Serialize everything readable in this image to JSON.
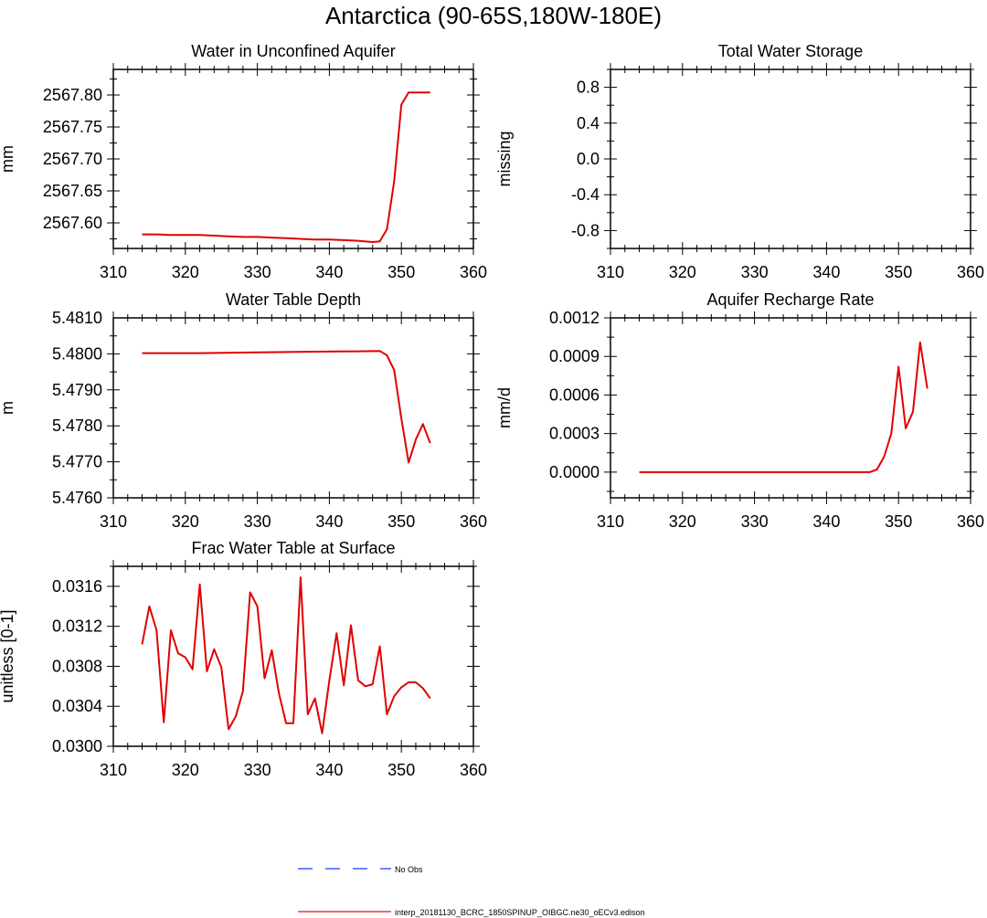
{
  "figure": {
    "title": "Antarctica (90-65S,180W-180E)",
    "legend": {
      "items": [
        {
          "label": "No Obs",
          "color": "#3b5bff",
          "style": "dashed"
        },
        {
          "label": "interp_20181130_BCRC_1850SPINUP_OIBGC.ne30_oECv3.edison",
          "color": "#e83a3a",
          "style": "solid"
        }
      ]
    }
  },
  "chart_data": [
    {
      "type": "line",
      "title": "Water in Unconfined Aquifer",
      "ylabel": "mm",
      "xlim": [
        310,
        360
      ],
      "ylim": [
        2567.56,
        2567.84
      ],
      "xticks": [
        "310",
        "320",
        "330",
        "340",
        "350",
        "360"
      ],
      "yticks": [
        "2567.60",
        "2567.65",
        "2567.70",
        "2567.75",
        "2567.80"
      ],
      "series": [
        {
          "color": "#e00000",
          "x": [
            314,
            316,
            318,
            320,
            322,
            324,
            326,
            328,
            330,
            332,
            334,
            336,
            338,
            340,
            342,
            344,
            346,
            347,
            348,
            349,
            350,
            351,
            352,
            353,
            354
          ],
          "y": [
            2567.582,
            2567.582,
            2567.581,
            2567.581,
            2567.581,
            2567.58,
            2567.579,
            2567.578,
            2567.578,
            2567.577,
            2567.576,
            2567.575,
            2567.574,
            2567.574,
            2567.573,
            2567.572,
            2567.57,
            2567.571,
            2567.59,
            2567.665,
            2567.785,
            2567.804,
            2567.804,
            2567.804,
            2567.804
          ]
        }
      ]
    },
    {
      "type": "line",
      "title": "Total Water Storage",
      "ylabel": "missing",
      "xlim": [
        310,
        360
      ],
      "ylim": [
        -1,
        1
      ],
      "xticks": [
        "310",
        "320",
        "330",
        "340",
        "350",
        "360"
      ],
      "yticks": [
        "-0.8",
        "-0.4",
        "0.0",
        "0.4",
        "0.8"
      ],
      "series": []
    },
    {
      "type": "line",
      "title": "Water Table Depth",
      "ylabel": "m",
      "xlim": [
        310,
        360
      ],
      "ylim": [
        5.476,
        5.481
      ],
      "xticks": [
        "310",
        "320",
        "330",
        "340",
        "350",
        "360"
      ],
      "yticks": [
        "5.4760",
        "5.4770",
        "5.4780",
        "5.4790",
        "5.4800",
        "5.4810"
      ],
      "series": [
        {
          "color": "#e00000",
          "x": [
            314,
            322,
            330,
            338,
            344,
            347,
            348,
            349,
            350,
            351,
            352,
            353,
            354
          ],
          "y": [
            5.48002,
            5.48002,
            5.48004,
            5.48006,
            5.48007,
            5.48008,
            5.47996,
            5.47955,
            5.4782,
            5.47698,
            5.47762,
            5.47805,
            5.47752
          ]
        }
      ]
    },
    {
      "type": "line",
      "title": "Aquifer Recharge Rate",
      "ylabel": "mm/d",
      "xlim": [
        310,
        360
      ],
      "ylim": [
        -0.0002,
        0.0012
      ],
      "xticks": [
        "310",
        "320",
        "330",
        "340",
        "350",
        "360"
      ],
      "yticks": [
        "0.0000",
        "0.0003",
        "0.0006",
        "0.0009",
        "0.0012"
      ],
      "series": [
        {
          "color": "#e00000",
          "x": [
            314,
            320,
            330,
            340,
            346,
            347,
            348,
            349,
            350,
            351,
            352,
            353,
            354
          ],
          "y": [
            0.0,
            0.0,
            0.0,
            0.0,
            0.0,
            2e-05,
            0.00012,
            0.0003,
            0.00082,
            0.00034,
            0.00047,
            0.00101,
            0.00065
          ]
        }
      ]
    },
    {
      "type": "line",
      "title": "Frac Water Table at Surface",
      "ylabel": "unitless [0-1]",
      "xlim": [
        310,
        360
      ],
      "ylim": [
        0.03,
        0.0318
      ],
      "xticks": [
        "310",
        "320",
        "330",
        "340",
        "350",
        "360"
      ],
      "yticks": [
        "0.0300",
        "0.0304",
        "0.0308",
        "0.0312",
        "0.0316"
      ],
      "series": [
        {
          "color": "#e00000",
          "x": [
            314,
            315,
            316,
            317,
            318,
            319,
            320,
            321,
            322,
            323,
            324,
            325,
            326,
            327,
            328,
            329,
            330,
            331,
            332,
            333,
            334,
            335,
            336,
            337,
            338,
            339,
            340,
            341,
            342,
            343,
            344,
            345,
            346,
            347,
            348,
            349,
            350,
            351,
            352,
            353,
            354
          ],
          "y": [
            0.03102,
            0.0314,
            0.03116,
            0.03024,
            0.03116,
            0.03093,
            0.03089,
            0.03077,
            0.03162,
            0.03075,
            0.03097,
            0.03079,
            0.03017,
            0.0303,
            0.03055,
            0.03154,
            0.0314,
            0.03068,
            0.03096,
            0.03053,
            0.03023,
            0.03023,
            0.03169,
            0.03032,
            0.03048,
            0.03013,
            0.03066,
            0.03113,
            0.03061,
            0.03121,
            0.03066,
            0.0306,
            0.03062,
            0.031,
            0.03032,
            0.0305,
            0.03059,
            0.03064,
            0.03064,
            0.03058,
            0.03048
          ]
        }
      ]
    }
  ]
}
